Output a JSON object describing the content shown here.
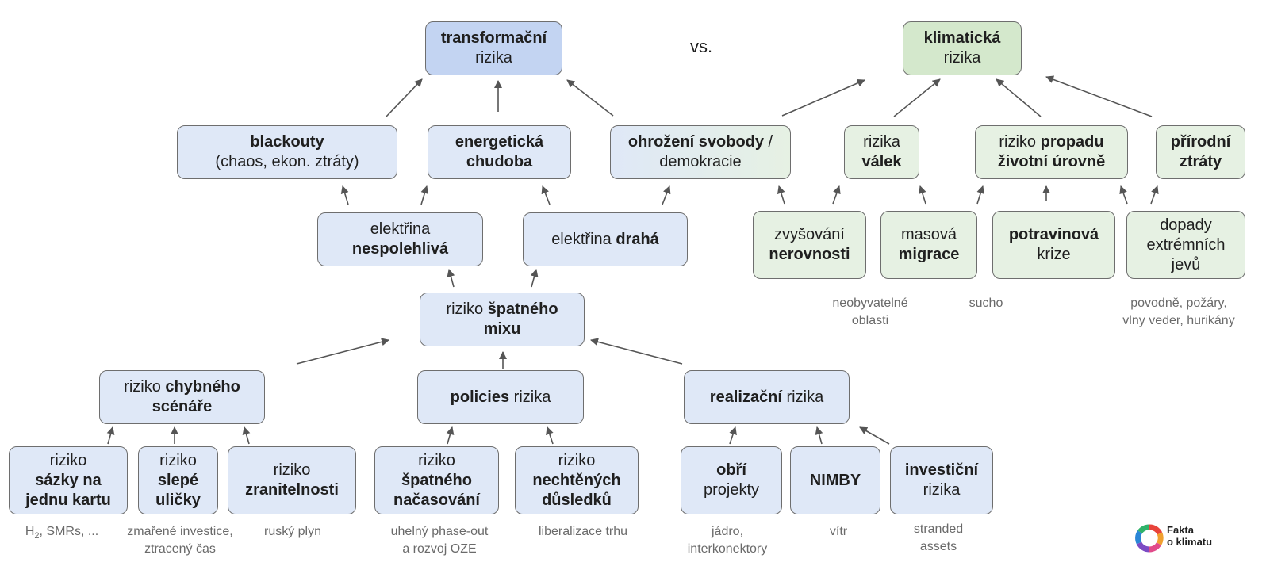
{
  "header": {
    "vs": "vs."
  },
  "boxes": {
    "transformacni": {
      "l1": "transformační",
      "l2": "rizika"
    },
    "klimaticka": {
      "l1": "klimatická",
      "l2": "rizika"
    },
    "blackouty": {
      "l1": "blackouty",
      "l2": "(chaos, ekon. ztráty)"
    },
    "chudoba": {
      "l1": "energetická",
      "l2": "chudoba"
    },
    "svoboda": {
      "l1a": "ohrožení svobody",
      "l1b": " /",
      "l2": "demokracie"
    },
    "valek": {
      "l1": "rizika",
      "l2": "válek"
    },
    "propad": {
      "l1a": "riziko ",
      "l1b": "propadu",
      "l2": "životní úrovně"
    },
    "prirodni": {
      "l1": "přírodní",
      "l2": "ztráty"
    },
    "nespolehliva": {
      "l1": "elektřina",
      "l2": "nespolehlivá"
    },
    "draha": {
      "l1a": "elektřina ",
      "l1b": "drahá"
    },
    "nerovnosti": {
      "l1": "zvyšování",
      "l2": "nerovnosti"
    },
    "migrace": {
      "l1": "masová",
      "l2": "migrace"
    },
    "potravinova": {
      "l1": "potravinová",
      "l2": "krize"
    },
    "jevy": {
      "l1": "dopady",
      "l2": "extrémních",
      "l3": "jevů"
    },
    "spatny_mix": {
      "l1a": "riziko ",
      "l1b": "špatného",
      "l2": "mixu"
    },
    "chybny_scenar": {
      "l1a": "riziko ",
      "l1b": "chybného",
      "l2": "scénáře"
    },
    "policies": {
      "l1a": "policies",
      "l1b": " rizika"
    },
    "realizacni": {
      "l1a": "realizační",
      "l1b": " rizika"
    },
    "sazky": {
      "l1": "riziko",
      "l2": "sázky na",
      "l3": "jednu kartu"
    },
    "slepe": {
      "l1": "riziko",
      "l2": "slepé",
      "l3": "uličky"
    },
    "zranitelnost": {
      "l1": "riziko",
      "l2": "zranitelnosti"
    },
    "nacasovani": {
      "l1": "riziko",
      "l2": "špatného",
      "l3": "načasování"
    },
    "nechtene": {
      "l1": "riziko",
      "l2": "nechtěných",
      "l3": "důsledků"
    },
    "obri": {
      "l1": "obří",
      "l2": "projekty"
    },
    "nimby": {
      "l1": "NIMBY"
    },
    "investicni": {
      "l1": "investiční",
      "l2": "rizika"
    }
  },
  "notes": {
    "neobyvatelne": {
      "l1": "neobyvatelné",
      "l2": "oblasti"
    },
    "sucho": {
      "l1": "sucho"
    },
    "povodne": {
      "l1": "povodně, požáry,",
      "l2": "vlny veder, hurikány"
    },
    "h2": {
      "pre": "H",
      "sub": "2",
      "post": ", SMRs, ..."
    },
    "zmarene": {
      "l1": "zmařené investice,",
      "l2": "ztracený čas"
    },
    "rusky": {
      "l1": "ruský plyn"
    },
    "uhelny": {
      "l1": "uhelný phase-out",
      "l2": "a rozvoj OZE"
    },
    "liberalizace": {
      "l1": "liberalizace trhu"
    },
    "jadro": {
      "l1": "jádro,",
      "l2": "interkonektory"
    },
    "vitr": {
      "l1": "vítr"
    },
    "stranded": {
      "l1": "stranded",
      "l2": "assets"
    }
  },
  "logo": {
    "l1": "Fakta",
    "l2": "o klimatu"
  },
  "colors": {
    "box_blue": "#dfe8f7",
    "box_blue_dark": "#c3d4f2",
    "box_green": "#e6f1e3",
    "box_green_dark": "#d4e8cc",
    "note_gray": "#6a6a6a",
    "arrow": "#555555"
  }
}
